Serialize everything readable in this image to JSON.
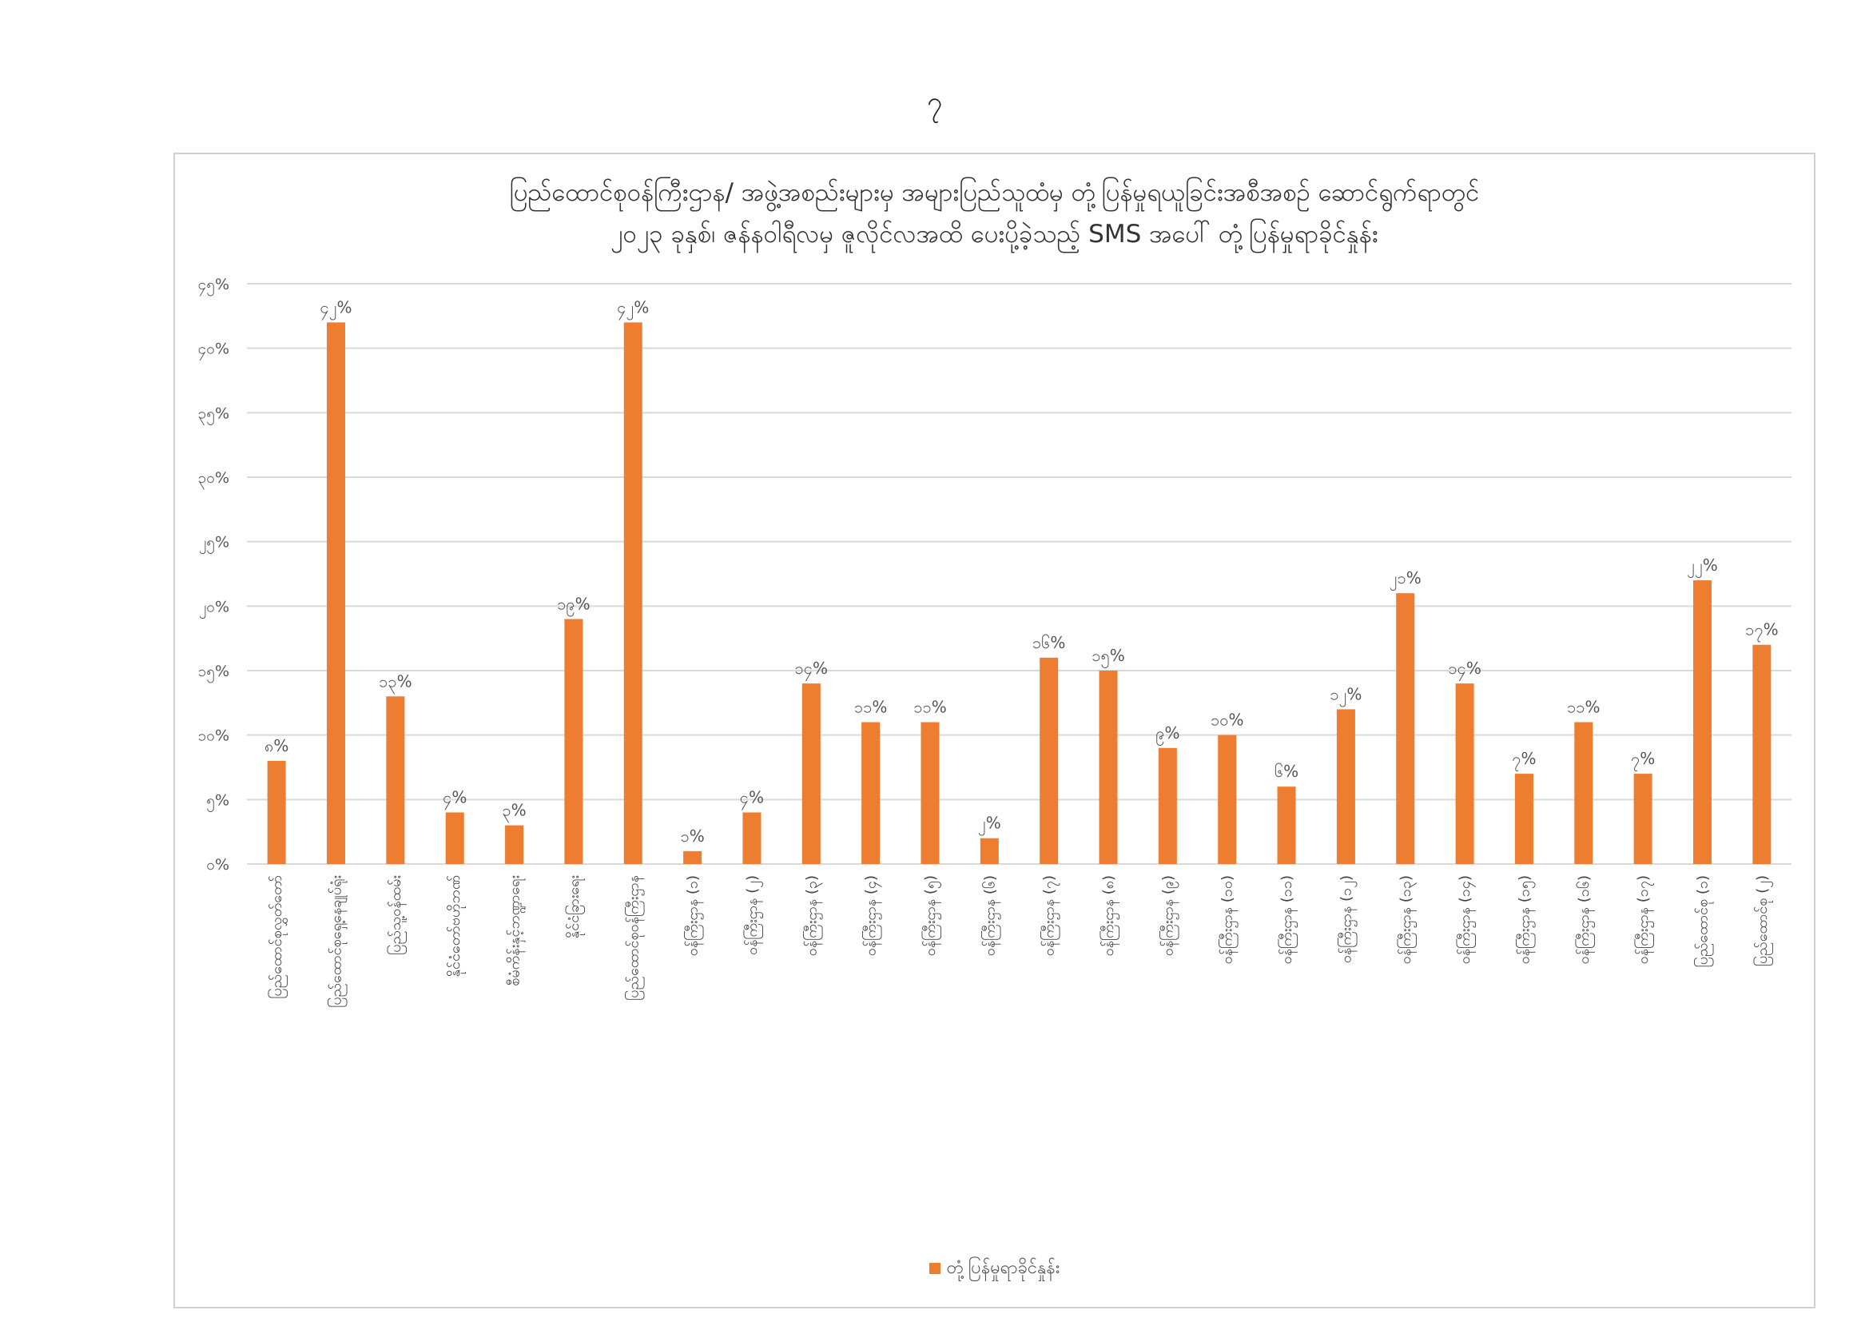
{
  "page_number": "၇",
  "chart_data": {
    "type": "bar",
    "title": [
      "ပြည်ထောင်စုဝန်ကြီးဌာန/ အဖွဲ့အစည်းများမှ အများပြည်သူထံမှ တုံ့ပြန်မှုရယူခြင်းအစီအစဉ် ဆောင်ရွက်ရာတွင်",
      "၂၀၂၃ ခုနှစ်၊ ဇန်နဝါရီလမှ ဇူလိုင်လအထိ ပေးပို့ခဲ့သည့် SMS အပေါ် တုံ့ပြန်မှုရာခိုင်နှုန်း"
    ],
    "legend": {
      "label": "တုံ့ပြန်မှုရာခိုင်နှုန်း",
      "position": "bottom"
    },
    "color": "#ED7D31",
    "grid": true,
    "ylim": [
      0,
      45
    ],
    "y_ticks": [
      "၀%",
      "၅%",
      "၁၀%",
      "၁၅%",
      "၂၀%",
      "၂၅%",
      "၃၀%",
      "၃၅%",
      "၄၀%",
      "၄၅%"
    ],
    "y_tick_values": [
      0,
      5,
      10,
      15,
      20,
      25,
      30,
      35,
      40,
      45
    ],
    "categories": [
      "ပြည်ထောင်စုလွှတ်တော်",
      "ပြည်ထောင်စုရှေ့နေချုပ်ရုံး",
      "ပြည်သူ့ဝန်ထမ်း",
      "နိုင်ငံတော်ဗဟိုဘဏ်",
      "စီမံကိန်းနှင့်ဘဏ္ဍာရေး",
      "နိုင်ငံခြားရေး",
      "ပြည်ထောင်စုဝန်ကြီးဌာန",
      "ဝန်ကြီးဌာန (၁)",
      "ဝန်ကြီးဌာန (၂)",
      "ဝန်ကြီးဌာန (၃)",
      "ဝန်ကြီးဌာန (၄)",
      "ဝန်ကြီးဌာန (၅)",
      "ဝန်ကြီးဌာန (၆)",
      "ဝန်ကြီးဌာန (၇)",
      "ဝန်ကြီးဌာန (၈)",
      "ဝန်ကြီးဌာန (၉)",
      "ဝန်ကြီးဌာန (၁၀)",
      "ဝန်ကြီးဌာန (၁၁)",
      "ဝန်ကြီးဌာန (၁၂)",
      "ဝန်ကြီးဌာန (၁၃)",
      "ဝန်ကြီးဌာန (၁၄)",
      "ဝန်ကြီးဌာန (၁၅)",
      "ဝန်ကြီးဌာန (၁၆)",
      "ဝန်ကြီးဌာန (၁၇)",
      "ပြည်ထောင်စု (၁)",
      "ပြည်ထောင်စု (၂)"
    ],
    "values": [
      8,
      42,
      13,
      4,
      3,
      19,
      42,
      1,
      4,
      14,
      11,
      11,
      2,
      16,
      15,
      9,
      10,
      6,
      12,
      21,
      14,
      7,
      11,
      7,
      22,
      17
    ],
    "value_labels": [
      "၈%",
      "၄၂%",
      "၁၃%",
      "၄%",
      "၃%",
      "၁၉%",
      "၄၂%",
      "၁%",
      "၄%",
      "၁၄%",
      "၁၁%",
      "၁၁%",
      "၂%",
      "၁၆%",
      "၁၅%",
      "၉%",
      "၁၀%",
      "၆%",
      "၁၂%",
      "၂၁%",
      "၁၄%",
      "၇%",
      "၁၁%",
      "၇%",
      "၂၂%",
      "၁၇%"
    ]
  }
}
